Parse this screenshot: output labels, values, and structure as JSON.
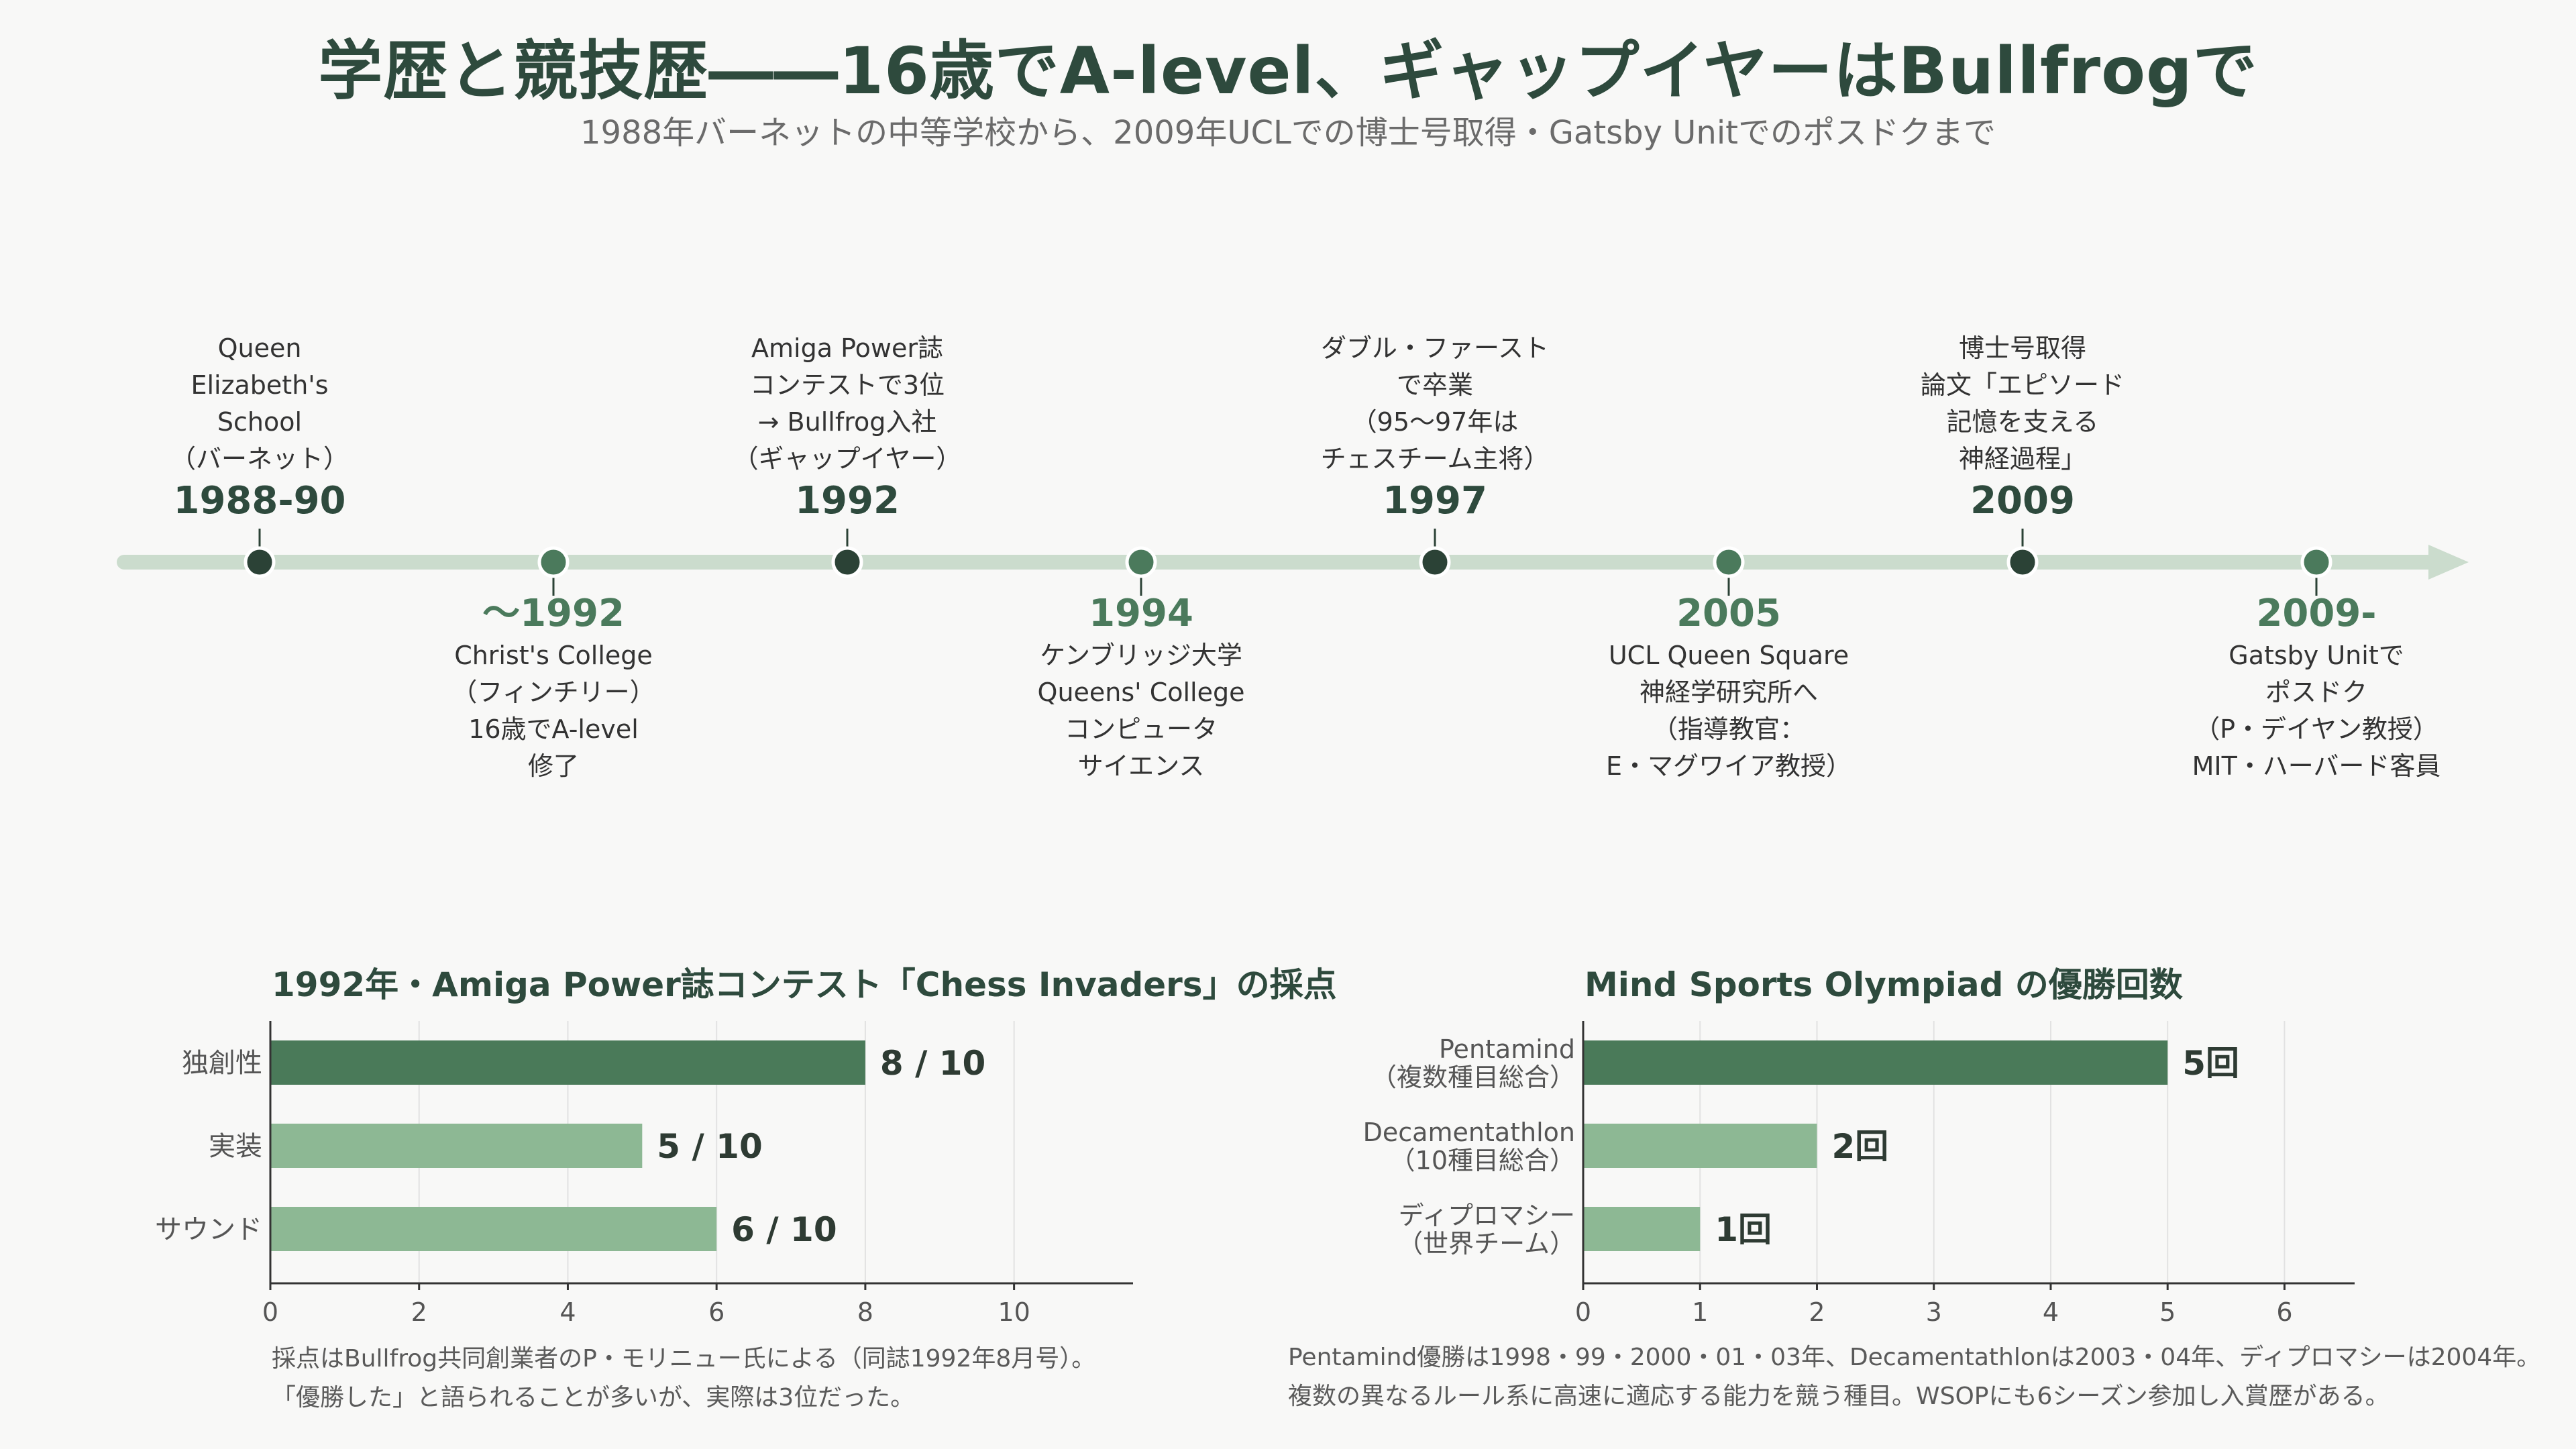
{
  "title": "学歴と競技歴――16歳でA-level、ギャップイヤーはBullfrogで",
  "subtitle": "1988年バーネットの中等学校から、2009年UCLでの博士号取得・Gatsby Unitでのポスドクまで",
  "colors": {
    "dark": "#2e4a3d",
    "node_dark": "#2b4236",
    "node_light": "#4b7a5c",
    "bar_dark": "#4a7a59",
    "bar_light": "#8db894",
    "track": "#cbdccd"
  },
  "timeline": {
    "events": [
      {
        "year": "1988-90",
        "text": "Queen\nElizabeth's\nSchool\n（バーネット）",
        "side": "up"
      },
      {
        "year": "～1992",
        "text": "Christ's College\n（フィンチリー）\n16歳でA-level\n修了",
        "side": "down"
      },
      {
        "year": "1992",
        "text": "Amiga Power誌\nコンテストで3位\n→ Bullfrog入社\n（ギャップイヤー）",
        "side": "up"
      },
      {
        "year": "1994",
        "text": "ケンブリッジ大学\nQueens' College\nコンピュータ\nサイエンス",
        "side": "down"
      },
      {
        "year": "1997",
        "text": "ダブル・ファースト\nで卒業\n（95～97年は\nチェスチーム主将）",
        "side": "up"
      },
      {
        "year": "2005",
        "text": "UCL Queen Square\n神経学研究所へ\n（指導教官：\nE・マグワイア教授）",
        "side": "down"
      },
      {
        "year": "2009",
        "text": "博士号取得\n論文「エピソード\n記憶を支える\n神経過程」",
        "side": "up"
      },
      {
        "year": "2009-",
        "text": "Gatsby Unitで\nポスドク\n（P・デイヤン教授）\nMIT・ハーバード客員",
        "side": "down"
      }
    ]
  },
  "chart_data": [
    {
      "type": "bar",
      "orientation": "horizontal",
      "title": "1992年・Amiga Power誌コンテスト「Chess Invaders」の採点",
      "categories": [
        "独創性",
        "実装",
        "サウンド"
      ],
      "values": [
        8,
        5,
        6
      ],
      "value_labels": [
        "8 / 10",
        "5 / 10",
        "6 / 10"
      ],
      "xlim": [
        0,
        11.6
      ],
      "xticks": [
        0,
        2,
        4,
        6,
        8,
        10
      ],
      "grid": true,
      "note": [
        "採点はBullfrog共同創業者のP・モリニュー氏による（同誌1992年8月号）。",
        "「優勝した」と語られることが多いが、実際は3位だった。"
      ]
    },
    {
      "type": "bar",
      "orientation": "horizontal",
      "title": "Mind Sports Olympiad の優勝回数",
      "categories": [
        "Pentamind\n（複数種目総合）",
        "Decamentathlon\n（10種目総合）",
        "ディプロマシー\n（世界チーム）"
      ],
      "values": [
        5,
        2,
        1
      ],
      "value_labels": [
        "5回",
        "2回",
        "1回"
      ],
      "xlim": [
        0,
        6.6
      ],
      "xticks": [
        0,
        1,
        2,
        3,
        4,
        5,
        6
      ],
      "grid": true,
      "note": [
        "Pentamind優勝は1998・99・2000・01・03年、Decamentathlonは2003・04年、ディプロマシーは2004年。",
        "複数の異なるルール系に高速に適応する能力を競う種目。WSOPにも6シーズン参加し入賞歴がある。"
      ]
    }
  ]
}
